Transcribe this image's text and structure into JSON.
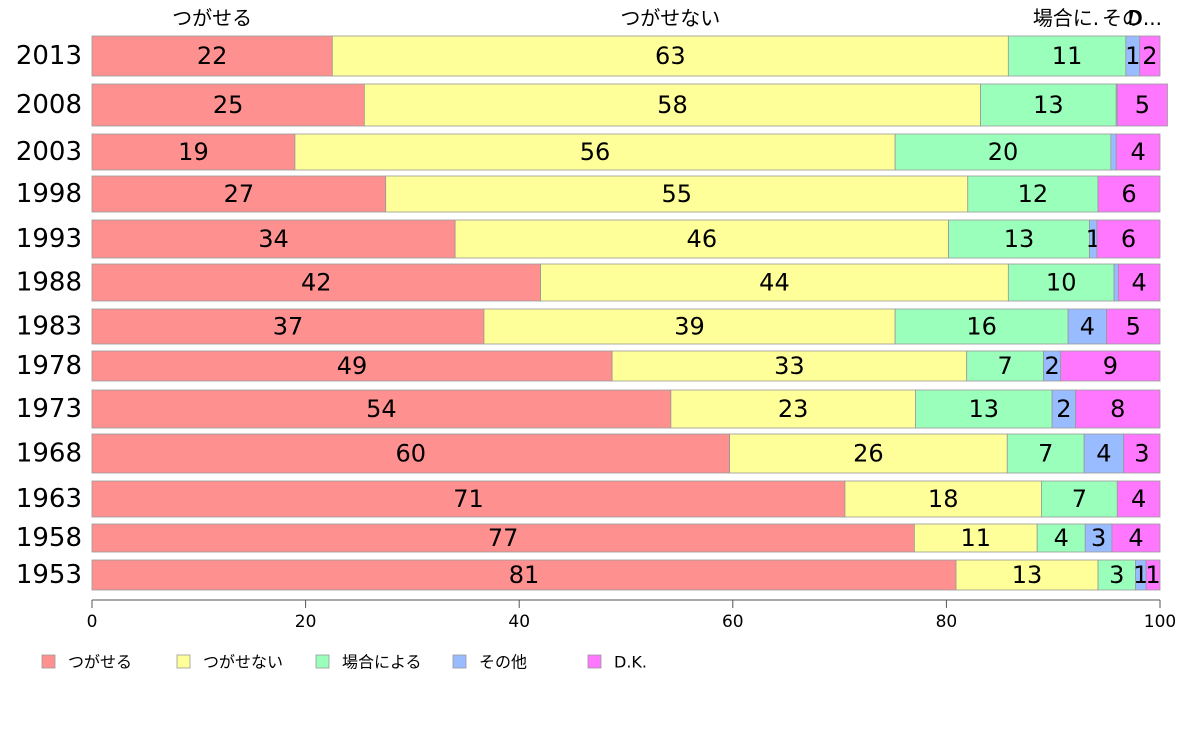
{
  "chart_data": {
    "type": "bar",
    "orientation": "horizontal",
    "stacked": true,
    "categories": [
      "2013",
      "2008",
      "2003",
      "1998",
      "1993",
      "1988",
      "1983",
      "1978",
      "1973",
      "1968",
      "1963",
      "1958",
      "1953"
    ],
    "series": [
      {
        "name": "つがせる",
        "color": "#ff9090",
        "values": [
          22.5,
          25.5,
          19,
          27.5,
          34,
          42,
          36.7,
          48.7,
          54.2,
          59.7,
          70.5,
          77,
          80.9
        ]
      },
      {
        "name": "つがせない",
        "color": "#ffff99",
        "values": [
          63.3,
          57.7,
          56.2,
          54.5,
          46.2,
          43.8,
          38.5,
          33.2,
          22.9,
          26,
          18.4,
          11.5,
          13.3
        ]
      },
      {
        "name": "場合による",
        "color": "#99ffbb",
        "values": [
          11,
          12.7,
          20.2,
          12.2,
          13.2,
          9.9,
          16.2,
          7.2,
          12.8,
          7.2,
          7.1,
          4.5,
          3.5
        ]
      },
      {
        "name": "その他",
        "color": "#99bbff",
        "values": [
          1.3,
          0.1,
          0.5,
          0,
          0.7,
          0.4,
          3.6,
          1.6,
          2.2,
          3.7,
          0,
          2.5,
          1
        ]
      },
      {
        "name": "D.K.",
        "color": "#ff77ff",
        "values": [
          1.9,
          4.7,
          4.1,
          5.8,
          5.9,
          3.9,
          5,
          9.3,
          7.9,
          3.4,
          4,
          4.5,
          1.3
        ]
      }
    ],
    "data_labels": [
      [
        "22",
        "63",
        "11",
        "1",
        "2"
      ],
      [
        "25",
        "58",
        "13",
        "",
        "5"
      ],
      [
        "19",
        "56",
        "20",
        "",
        "4"
      ],
      [
        "27",
        "55",
        "12",
        "",
        "6"
      ],
      [
        "34",
        "46",
        "13",
        "1",
        "6"
      ],
      [
        "42",
        "44",
        "10",
        "",
        "4"
      ],
      [
        "37",
        "39",
        "16",
        "4",
        "5"
      ],
      [
        "49",
        "33",
        "7",
        "2",
        "9"
      ],
      [
        "54",
        "23",
        "13",
        "2",
        "8"
      ],
      [
        "60",
        "26",
        "7",
        "4",
        "3"
      ],
      [
        "71",
        "18",
        "7",
        "",
        "4"
      ],
      [
        "77",
        "11",
        "4",
        "3",
        "4"
      ],
      [
        "81",
        "13",
        "3",
        "1",
        "1"
      ]
    ],
    "top_labels": [
      "つがせる",
      "つがせない",
      "場合に.",
      "その",
      "D..."
    ],
    "x_ticks": [
      "0",
      "20",
      "40",
      "60",
      "80",
      "100"
    ],
    "xlim": [
      0,
      100
    ],
    "grid": false,
    "legend_position": "bottom-left"
  }
}
